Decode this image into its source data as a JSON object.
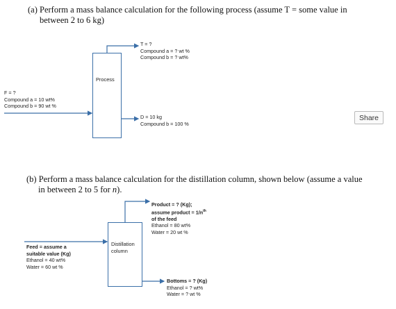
{
  "part_a": {
    "question_line1": "(a) Perform a mass balance calculation for the following process (assume T = some value in",
    "question_line2": "between 2 to 6 kg)",
    "process_label": "Process",
    "top_stream": [
      "T = ?",
      "Compound a = ? wt %",
      "Compound b = ? wt%"
    ],
    "feed_stream": [
      "F = ?",
      "Compound a = 10 wt%",
      "Compound b = 90 wt %"
    ],
    "bottom_stream": [
      "D = 10 kg",
      "Compound b = 100 %"
    ]
  },
  "share_label": "Share",
  "part_b": {
    "question_prefix": "(b) Perform a mass balance calculation for the distillation column, shown below (assume a value",
    "question_line2_prefix": "in between 2 to 5 for ",
    "question_line2_var": "n",
    "question_line2_suffix": ").",
    "column_label_1": "Distillation",
    "column_label_2": "column",
    "product_stream": {
      "line1": "Product = ? (Kg);",
      "line2_prefix": "assume product = 1/n",
      "line2_sup": "th",
      "line3": "of the feed",
      "line4": "Ethanol = 80 wt%",
      "line5": "Water = 20 wt %"
    },
    "feed_stream": [
      "Feed = assume a",
      "suitable value (Kg)",
      "Ethanol = 40 wt%",
      "Water = 60 wt %"
    ],
    "bottoms_stream": [
      "Bottoms = ? (Kg)",
      "Ethanol = ? wt%",
      "Water = ? wt %"
    ]
  }
}
